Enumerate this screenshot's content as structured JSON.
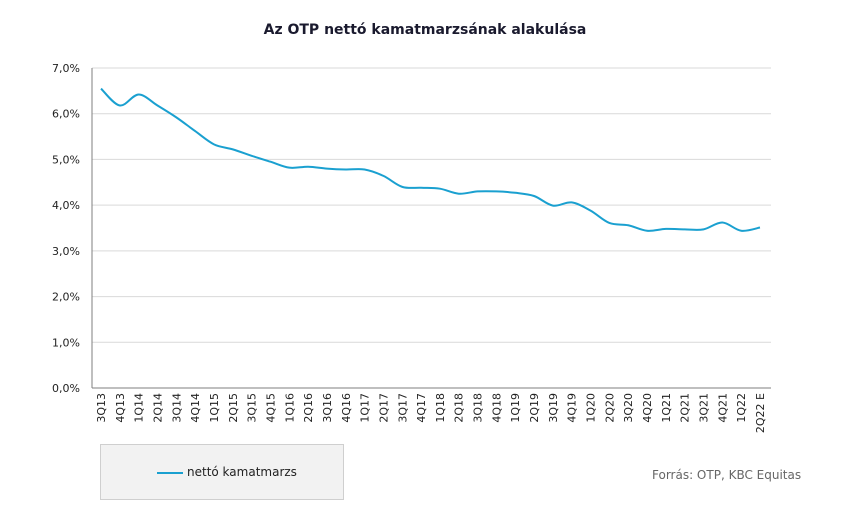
{
  "chart_data": {
    "type": "line",
    "title": "Az OTP nettó kamatmarzsának alakulása",
    "categories": [
      "3Q13",
      "4Q13",
      "1Q14",
      "2Q14",
      "3Q14",
      "4Q14",
      "1Q15",
      "2Q15",
      "3Q15",
      "4Q15",
      "1Q16",
      "2Q16",
      "3Q16",
      "4Q16",
      "1Q17",
      "2Q17",
      "3Q17",
      "4Q17",
      "1Q18",
      "2Q18",
      "3Q18",
      "4Q18",
      "1Q19",
      "2Q19",
      "3Q19",
      "4Q19",
      "1Q20",
      "2Q20",
      "3Q20",
      "4Q20",
      "1Q21",
      "2Q21",
      "3Q21",
      "4Q21",
      "1Q22",
      "2Q22 E"
    ],
    "series": [
      {
        "name": "nettó kamatmarzs",
        "color": "#1aa0d0",
        "values": [
          6.55,
          6.18,
          6.42,
          6.18,
          5.92,
          5.62,
          5.33,
          5.22,
          5.08,
          4.95,
          4.82,
          4.84,
          4.8,
          4.78,
          4.78,
          4.64,
          4.4,
          4.38,
          4.36,
          4.25,
          4.3,
          4.3,
          4.27,
          4.2,
          3.99,
          4.06,
          3.88,
          3.61,
          3.56,
          3.44,
          3.48,
          3.47,
          3.47,
          3.62,
          3.44,
          3.51
        ]
      }
    ],
    "ylim": [
      0,
      7
    ],
    "yticks": [
      "0,0%",
      "1,0%",
      "2,0%",
      "3,0%",
      "4,0%",
      "5,0%",
      "6,0%",
      "7,0%"
    ],
    "grid": true,
    "legend_position": "bottom-left"
  },
  "source_text": "Forrás: OTP, KBC Equitas"
}
